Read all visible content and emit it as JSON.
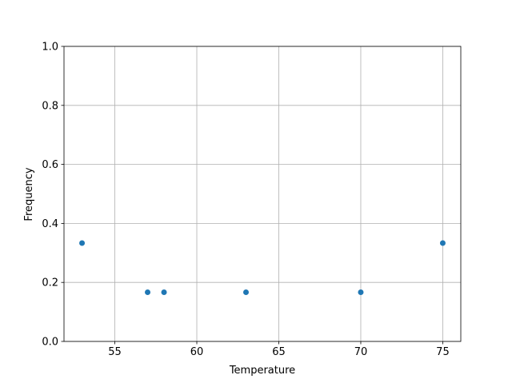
{
  "chart_data": {
    "type": "scatter",
    "title": "",
    "xlabel": "Temperature",
    "ylabel": "Frequency",
    "xlim": [
      51.9,
      76.1
    ],
    "ylim": [
      0,
      1
    ],
    "xticks": [
      55,
      60,
      65,
      70,
      75
    ],
    "xtick_labels": [
      "55",
      "60",
      "65",
      "70",
      "75"
    ],
    "yticks": [
      0,
      0.2,
      0.4,
      0.6,
      0.8,
      1.0
    ],
    "ytick_labels": [
      "0.0",
      "0.2",
      "0.4",
      "0.6",
      "0.8",
      "1.0"
    ],
    "grid": true,
    "color": "#1f77b4",
    "points": [
      {
        "x": 53,
        "y": 0.3333
      },
      {
        "x": 57,
        "y": 0.1667
      },
      {
        "x": 58,
        "y": 0.1667
      },
      {
        "x": 63,
        "y": 0.1667
      },
      {
        "x": 70,
        "y": 0.1667
      },
      {
        "x": 75,
        "y": 0.3333
      }
    ]
  }
}
